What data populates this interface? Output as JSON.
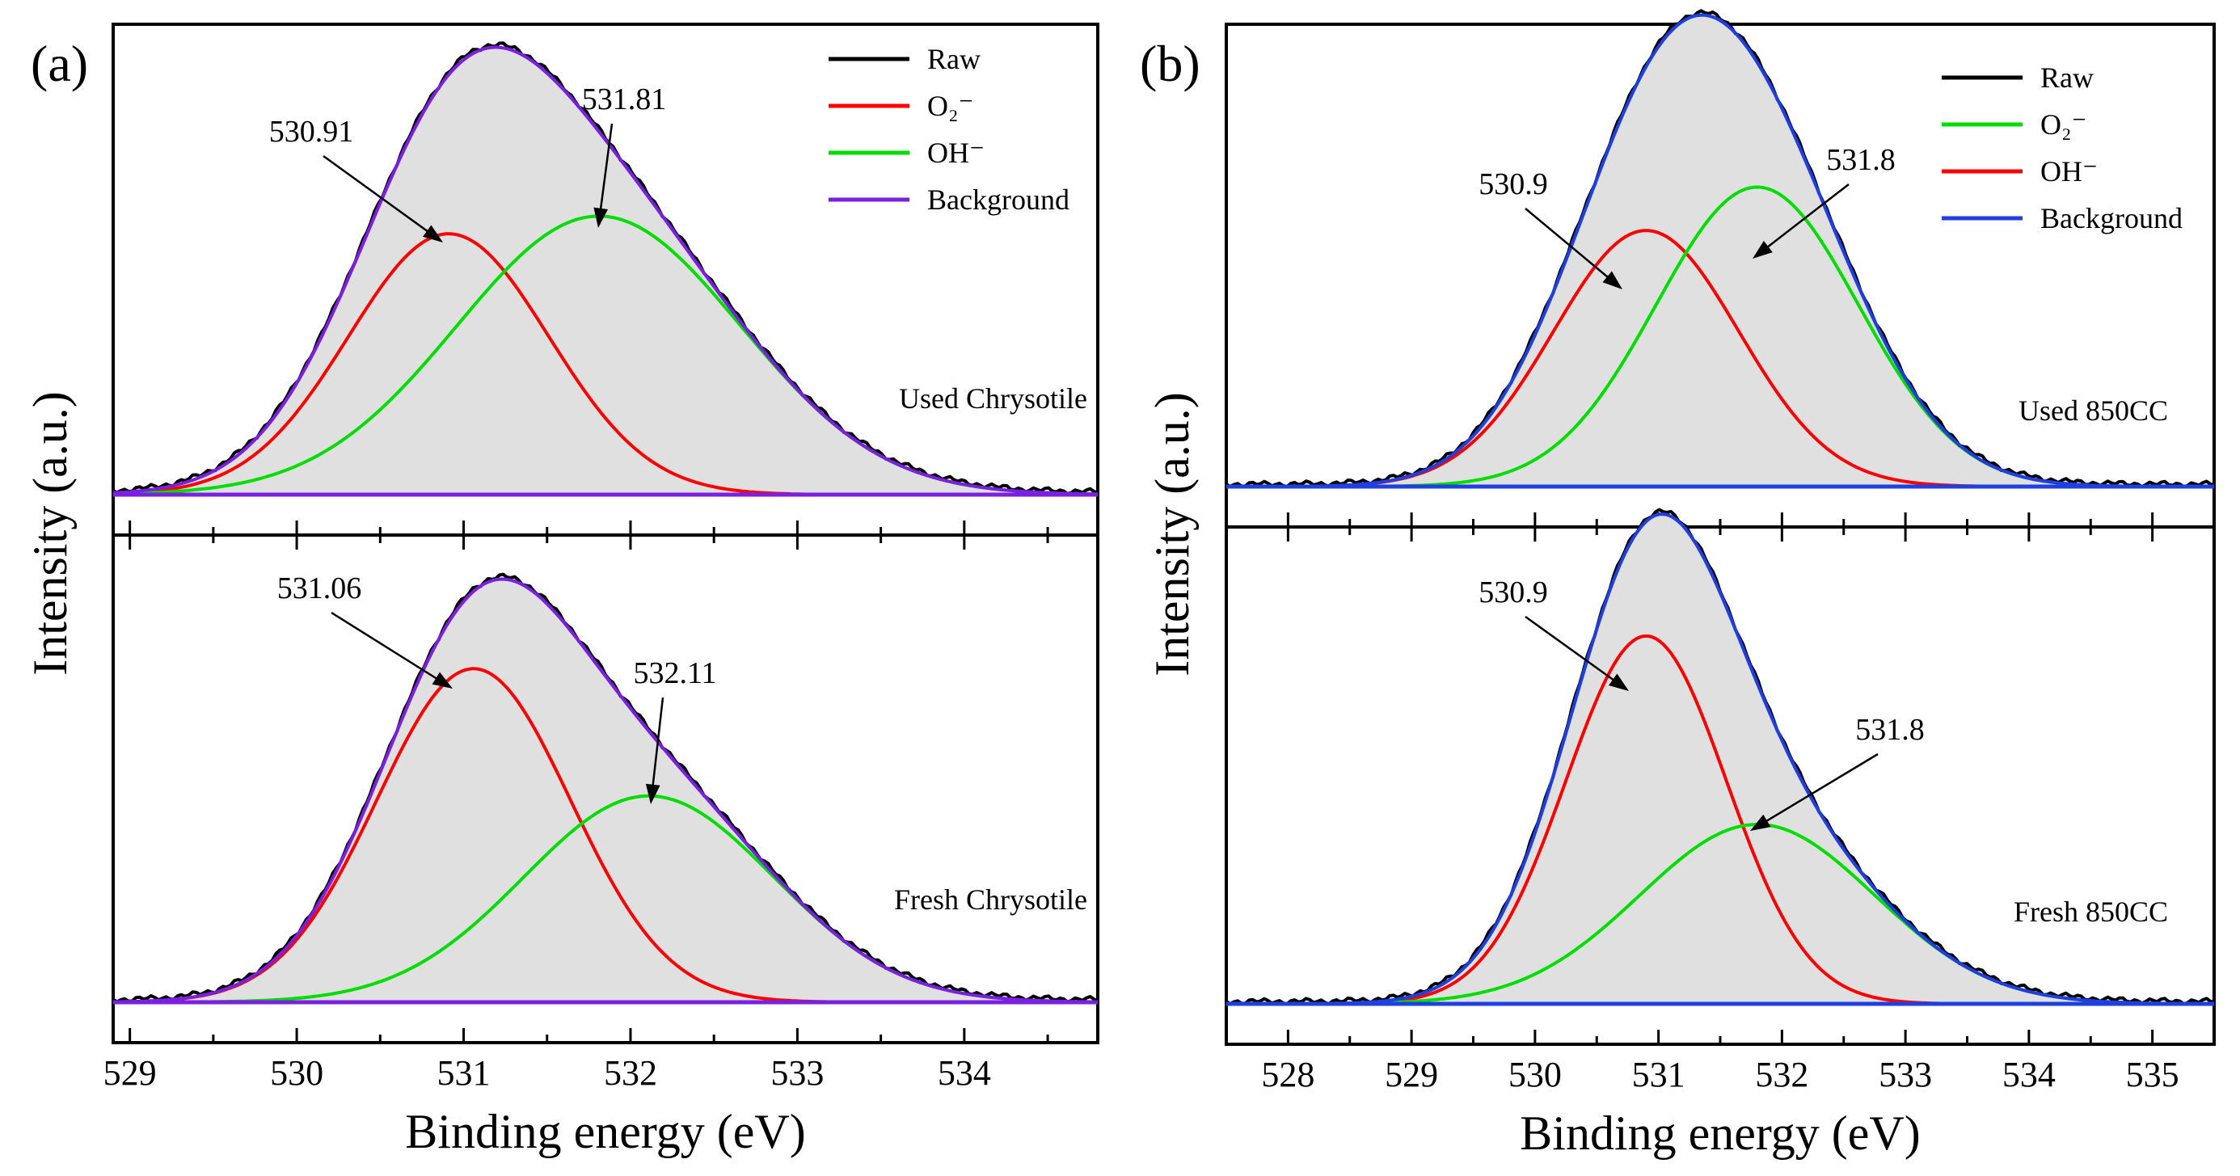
{
  "chart_data": [
    {
      "panel": "(a)",
      "type": "line",
      "xlabel": "Binding energy (eV)",
      "ylabel": "Intensity (a.u.)",
      "xlim": [
        528.9,
        534.8
      ],
      "xticks": [
        "529",
        "530",
        "531",
        "532",
        "533",
        "534"
      ],
      "legend": {
        "position": "top-right",
        "entries": [
          {
            "label": "Raw",
            "color": "#000000"
          },
          {
            "label": "O₂⁻",
            "color": "#ff0000"
          },
          {
            "label": "OH⁻",
            "color": "#00dd00"
          },
          {
            "label": "Background",
            "color": "#7b1fe0"
          }
        ]
      },
      "subplots": [
        {
          "sample": "Used Chrysotile",
          "ylim": [
            0,
            1.12
          ],
          "background": [
            0.0,
            0.0
          ],
          "series": [
            {
              "name": "O₂⁻",
              "color": "#ff0000",
              "center": 530.91,
              "height": 0.59,
              "sigma": 0.6
            },
            {
              "name": "OH⁻",
              "color": "#00dd00",
              "center": 531.81,
              "height": 0.63,
              "sigma": 0.85
            }
          ],
          "annotations": [
            {
              "text": "530.91",
              "peak": 530.91
            },
            {
              "text": "531.81",
              "peak": 531.81
            }
          ]
        },
        {
          "sample": "Fresh Chrysotile",
          "ylim": [
            0,
            1.12
          ],
          "background": [
            0.0,
            0.0
          ],
          "series": [
            {
              "name": "O₂⁻",
              "color": "#ff0000",
              "center": 531.06,
              "height": 0.76,
              "sigma": 0.58
            },
            {
              "name": "OH⁻",
              "color": "#00dd00",
              "center": 532.11,
              "height": 0.47,
              "sigma": 0.75
            }
          ],
          "annotations": [
            {
              "text": "531.06",
              "peak": 531.06
            },
            {
              "text": "532.11",
              "peak": 532.11
            }
          ]
        }
      ]
    },
    {
      "panel": "(b)",
      "type": "line",
      "xlabel": "Binding energy (eV)",
      "ylabel": "Intensity (a.u.)",
      "xlim": [
        527.5,
        535.5
      ],
      "xticks": [
        "528",
        "529",
        "530",
        "531",
        "532",
        "533",
        "534",
        "535"
      ],
      "legend": {
        "position": "top-right",
        "entries": [
          {
            "label": "Raw",
            "color": "#000000"
          },
          {
            "label": "O₂⁻",
            "color": "#00dd00"
          },
          {
            "label": "OH⁻",
            "color": "#ff0000"
          },
          {
            "label": "Background",
            "color": "#1f3fe0"
          }
        ]
      },
      "subplots": [
        {
          "sample": "Used 850CC",
          "ylim": [
            0,
            1.12
          ],
          "background": [
            0.0,
            0.0
          ],
          "series": [
            {
              "name": "OH⁻",
              "color": "#ff0000",
              "center": 530.9,
              "height": 0.59,
              "sigma": 0.75
            },
            {
              "name": "O₂⁻",
              "color": "#00dd00",
              "center": 531.8,
              "height": 0.69,
              "sigma": 0.82
            }
          ],
          "annotations": [
            {
              "text": "530.9",
              "peak": 530.9
            },
            {
              "text": "531.8",
              "peak": 531.8
            }
          ]
        },
        {
          "sample": "Fresh 850CC",
          "ylim": [
            0,
            1.12
          ],
          "background": [
            0.0,
            0.0
          ],
          "series": [
            {
              "name": "OH⁻",
              "color": "#ff0000",
              "center": 530.9,
              "height": 0.82,
              "sigma": 0.65
            },
            {
              "name": "O₂⁻",
              "color": "#00dd00",
              "center": 531.8,
              "height": 0.4,
              "sigma": 0.95
            }
          ],
          "annotations": [
            {
              "text": "530.9",
              "peak": 530.9
            },
            {
              "text": "531.8",
              "peak": 531.8
            }
          ]
        }
      ]
    }
  ]
}
